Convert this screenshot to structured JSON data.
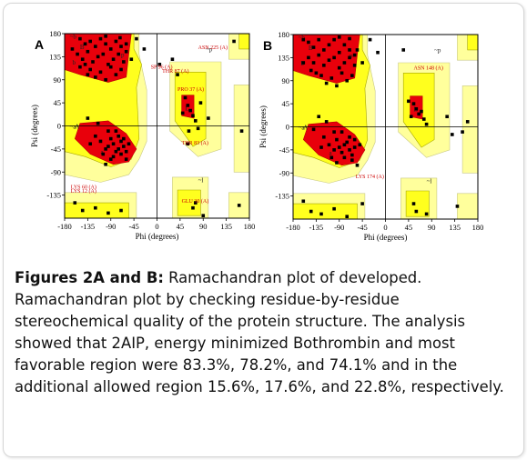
{
  "caption": {
    "bold": "Figures 2A and B:",
    "text": " Ramachandran plot of developed. Ramachandran plot by checking residue-by-residue stereochemical quality of the protein structure. The analysis showed that 2AIP, energy minimized Bothrombin and most favorable region were 83.3%, 78.2%, and 74.1% and in the additional allowed region 15.6%, 17.6%, and 22.8%, respectively."
  },
  "colors": {
    "core": "#e8000b",
    "allowed": "#ffff1e",
    "generous": "#ffff9c",
    "outside": "#ffffff",
    "residue": "#000000",
    "label": "#cc0000"
  },
  "chart_data": [
    {
      "panel": "A",
      "type": "scatter",
      "xlabel": "Phi (degrees)",
      "ylabel": "Psi (degrees)",
      "xlim": [
        -180,
        180
      ],
      "ylim": [
        -180,
        180
      ],
      "xticks": [
        "-180",
        "-135",
        "-90",
        "-45",
        "0",
        "45",
        "90",
        "135",
        "180"
      ],
      "yticks": [
        "180",
        "135",
        "90",
        "45",
        "0",
        "-45",
        "-90",
        "-135"
      ],
      "region_labels": [
        "A",
        "B",
        "b",
        "a",
        "L",
        "p",
        "~b",
        "~a",
        "~l",
        "~p"
      ],
      "annotations": [
        {
          "text": "ASN 225 (A)",
          "x": 80,
          "y": 150
        },
        {
          "text": "SP 96 (A)",
          "x": -12,
          "y": 112
        },
        {
          "text": "THR 87 (A)",
          "x": 10,
          "y": 104
        },
        {
          "text": "PRO 37 (A)",
          "x": 40,
          "y": 68
        },
        {
          "text": "THR 83 (A)",
          "x": 48,
          "y": -36
        },
        {
          "text": "LYS 60 (A)",
          "x": -168,
          "y": -122
        },
        {
          "text": "LYS 12 (A)",
          "x": -168,
          "y": -130
        },
        {
          "text": "GLU 30 (A)",
          "x": 48,
          "y": -150
        }
      ],
      "points": [
        [
          -150,
          170
        ],
        [
          -140,
          160
        ],
        [
          -130,
          165
        ],
        [
          -120,
          155
        ],
        [
          -110,
          170
        ],
        [
          -100,
          160
        ],
        [
          -90,
          150
        ],
        [
          -80,
          165
        ],
        [
          -70,
          155
        ],
        [
          -60,
          145
        ],
        [
          -155,
          140
        ],
        [
          -145,
          130
        ],
        [
          -135,
          145
        ],
        [
          -125,
          125
        ],
        [
          -115,
          135
        ],
        [
          -105,
          140
        ],
        [
          -95,
          120
        ],
        [
          -85,
          130
        ],
        [
          -75,
          140
        ],
        [
          -65,
          125
        ],
        [
          -150,
          115
        ],
        [
          -130,
          110
        ],
        [
          -110,
          105
        ],
        [
          -90,
          115
        ],
        [
          -70,
          110
        ],
        [
          -120,
          95
        ],
        [
          -100,
          90
        ],
        [
          -80,
          100
        ],
        [
          -60,
          160
        ],
        [
          -50,
          130
        ],
        [
          -165,
          150
        ],
        [
          -140,
          120
        ],
        [
          -100,
          175
        ],
        [
          -72,
          172
        ],
        [
          -135,
          100
        ],
        [
          -95,
          -40
        ],
        [
          -85,
          -35
        ],
        [
          -75,
          -45
        ],
        [
          -65,
          -40
        ],
        [
          -70,
          -30
        ],
        [
          -80,
          -50
        ],
        [
          -90,
          -25
        ],
        [
          -60,
          -50
        ],
        [
          -100,
          -45
        ],
        [
          -75,
          -20
        ],
        [
          -85,
          -60
        ],
        [
          -65,
          -25
        ],
        [
          -110,
          -30
        ],
        [
          -95,
          -10
        ],
        [
          -120,
          -20
        ],
        [
          -105,
          -55
        ],
        [
          -70,
          -55
        ],
        [
          -55,
          -35
        ],
        [
          -80,
          -10
        ],
        [
          -90,
          -65
        ],
        [
          -130,
          -35
        ],
        [
          -115,
          5
        ],
        [
          -135,
          15
        ],
        [
          -100,
          -75
        ],
        [
          -60,
          -65
        ],
        [
          55,
          55
        ],
        [
          60,
          40
        ],
        [
          65,
          30
        ],
        [
          70,
          20
        ],
        [
          50,
          25
        ],
        [
          75,
          10
        ],
        [
          80,
          -5
        ],
        [
          62,
          -10
        ],
        [
          85,
          45
        ],
        [
          100,
          15
        ],
        [
          -145,
          -165
        ],
        [
          -120,
          -160
        ],
        [
          -95,
          -170
        ],
        [
          -70,
          -165
        ],
        [
          -160,
          -150
        ],
        [
          70,
          -160
        ],
        [
          75,
          -150
        ],
        [
          90,
          -175
        ],
        [
          160,
          -155
        ],
        [
          150,
          165
        ],
        [
          -40,
          170
        ],
        [
          -25,
          150
        ],
        [
          30,
          130
        ],
        [
          5,
          120
        ],
        [
          40,
          100
        ],
        [
          60,
          -35
        ],
        [
          165,
          -10
        ]
      ]
    },
    {
      "panel": "B",
      "type": "scatter",
      "xlabel": "Phi (degrees)",
      "ylabel": "Psi (degrees)",
      "xlim": [
        -180,
        180
      ],
      "ylim": [
        -180,
        180
      ],
      "xticks": [
        "-180",
        "-135",
        "-90",
        "-45",
        "0",
        "45",
        "90",
        "135",
        "180"
      ],
      "yticks": [
        "180",
        "135",
        "90",
        "45",
        "0",
        "-45",
        "-90",
        "-135"
      ],
      "region_labels": [
        "A",
        "B",
        "b",
        "a",
        "L",
        "p",
        "~b",
        "~a",
        "~l",
        "~p"
      ],
      "annotations": [
        {
          "text": "ASN 148 (A)",
          "x": 55,
          "y": 112
        },
        {
          "text": "LYS 174 (A)",
          "x": -58,
          "y": -100
        }
      ],
      "points": [
        [
          -150,
          165
        ],
        [
          -140,
          155
        ],
        [
          -130,
          170
        ],
        [
          -120,
          150
        ],
        [
          -110,
          160
        ],
        [
          -100,
          170
        ],
        [
          -90,
          145
        ],
        [
          -80,
          160
        ],
        [
          -70,
          150
        ],
        [
          -60,
          140
        ],
        [
          -150,
          135
        ],
        [
          -140,
          125
        ],
        [
          -130,
          140
        ],
        [
          -120,
          120
        ],
        [
          -110,
          130
        ],
        [
          -100,
          135
        ],
        [
          -90,
          115
        ],
        [
          -80,
          125
        ],
        [
          -70,
          135
        ],
        [
          -60,
          120
        ],
        [
          -145,
          110
        ],
        [
          -125,
          100
        ],
        [
          -105,
          95
        ],
        [
          -85,
          105
        ],
        [
          -65,
          100
        ],
        [
          -115,
          85
        ],
        [
          -95,
          80
        ],
        [
          -75,
          90
        ],
        [
          -55,
          150
        ],
        [
          -45,
          125
        ],
        [
          -160,
          170
        ],
        [
          -135,
          105
        ],
        [
          -90,
          175
        ],
        [
          -70,
          172
        ],
        [
          -160,
          125
        ],
        [
          -90,
          -40
        ],
        [
          -80,
          -35
        ],
        [
          -70,
          -45
        ],
        [
          -60,
          -40
        ],
        [
          -75,
          -30
        ],
        [
          -85,
          -50
        ],
        [
          -95,
          -25
        ],
        [
          -65,
          -55
        ],
        [
          -100,
          -45
        ],
        [
          -70,
          -20
        ],
        [
          -80,
          -60
        ],
        [
          -60,
          -25
        ],
        [
          -110,
          -35
        ],
        [
          -100,
          -10
        ],
        [
          -120,
          -20
        ],
        [
          -105,
          -60
        ],
        [
          -65,
          -65
        ],
        [
          -50,
          -35
        ],
        [
          -85,
          -10
        ],
        [
          -95,
          -70
        ],
        [
          -125,
          -40
        ],
        [
          -115,
          10
        ],
        [
          -130,
          20
        ],
        [
          -55,
          -75
        ],
        [
          -140,
          -5
        ],
        [
          55,
          45
        ],
        [
          60,
          35
        ],
        [
          65,
          25
        ],
        [
          50,
          20
        ],
        [
          70,
          30
        ],
        [
          75,
          15
        ],
        [
          45,
          50
        ],
        [
          80,
          5
        ],
        [
          -145,
          -165
        ],
        [
          -125,
          -170
        ],
        [
          -100,
          -160
        ],
        [
          -75,
          -175
        ],
        [
          -160,
          -145
        ],
        [
          -45,
          -150
        ],
        [
          55,
          -150
        ],
        [
          60,
          -165
        ],
        [
          80,
          -170
        ],
        [
          140,
          -155
        ],
        [
          160,
          10
        ],
        [
          150,
          -10
        ],
        [
          -30,
          170
        ],
        [
          -15,
          145
        ],
        [
          35,
          150
        ],
        [
          120,
          20
        ],
        [
          130,
          -15
        ]
      ]
    }
  ]
}
